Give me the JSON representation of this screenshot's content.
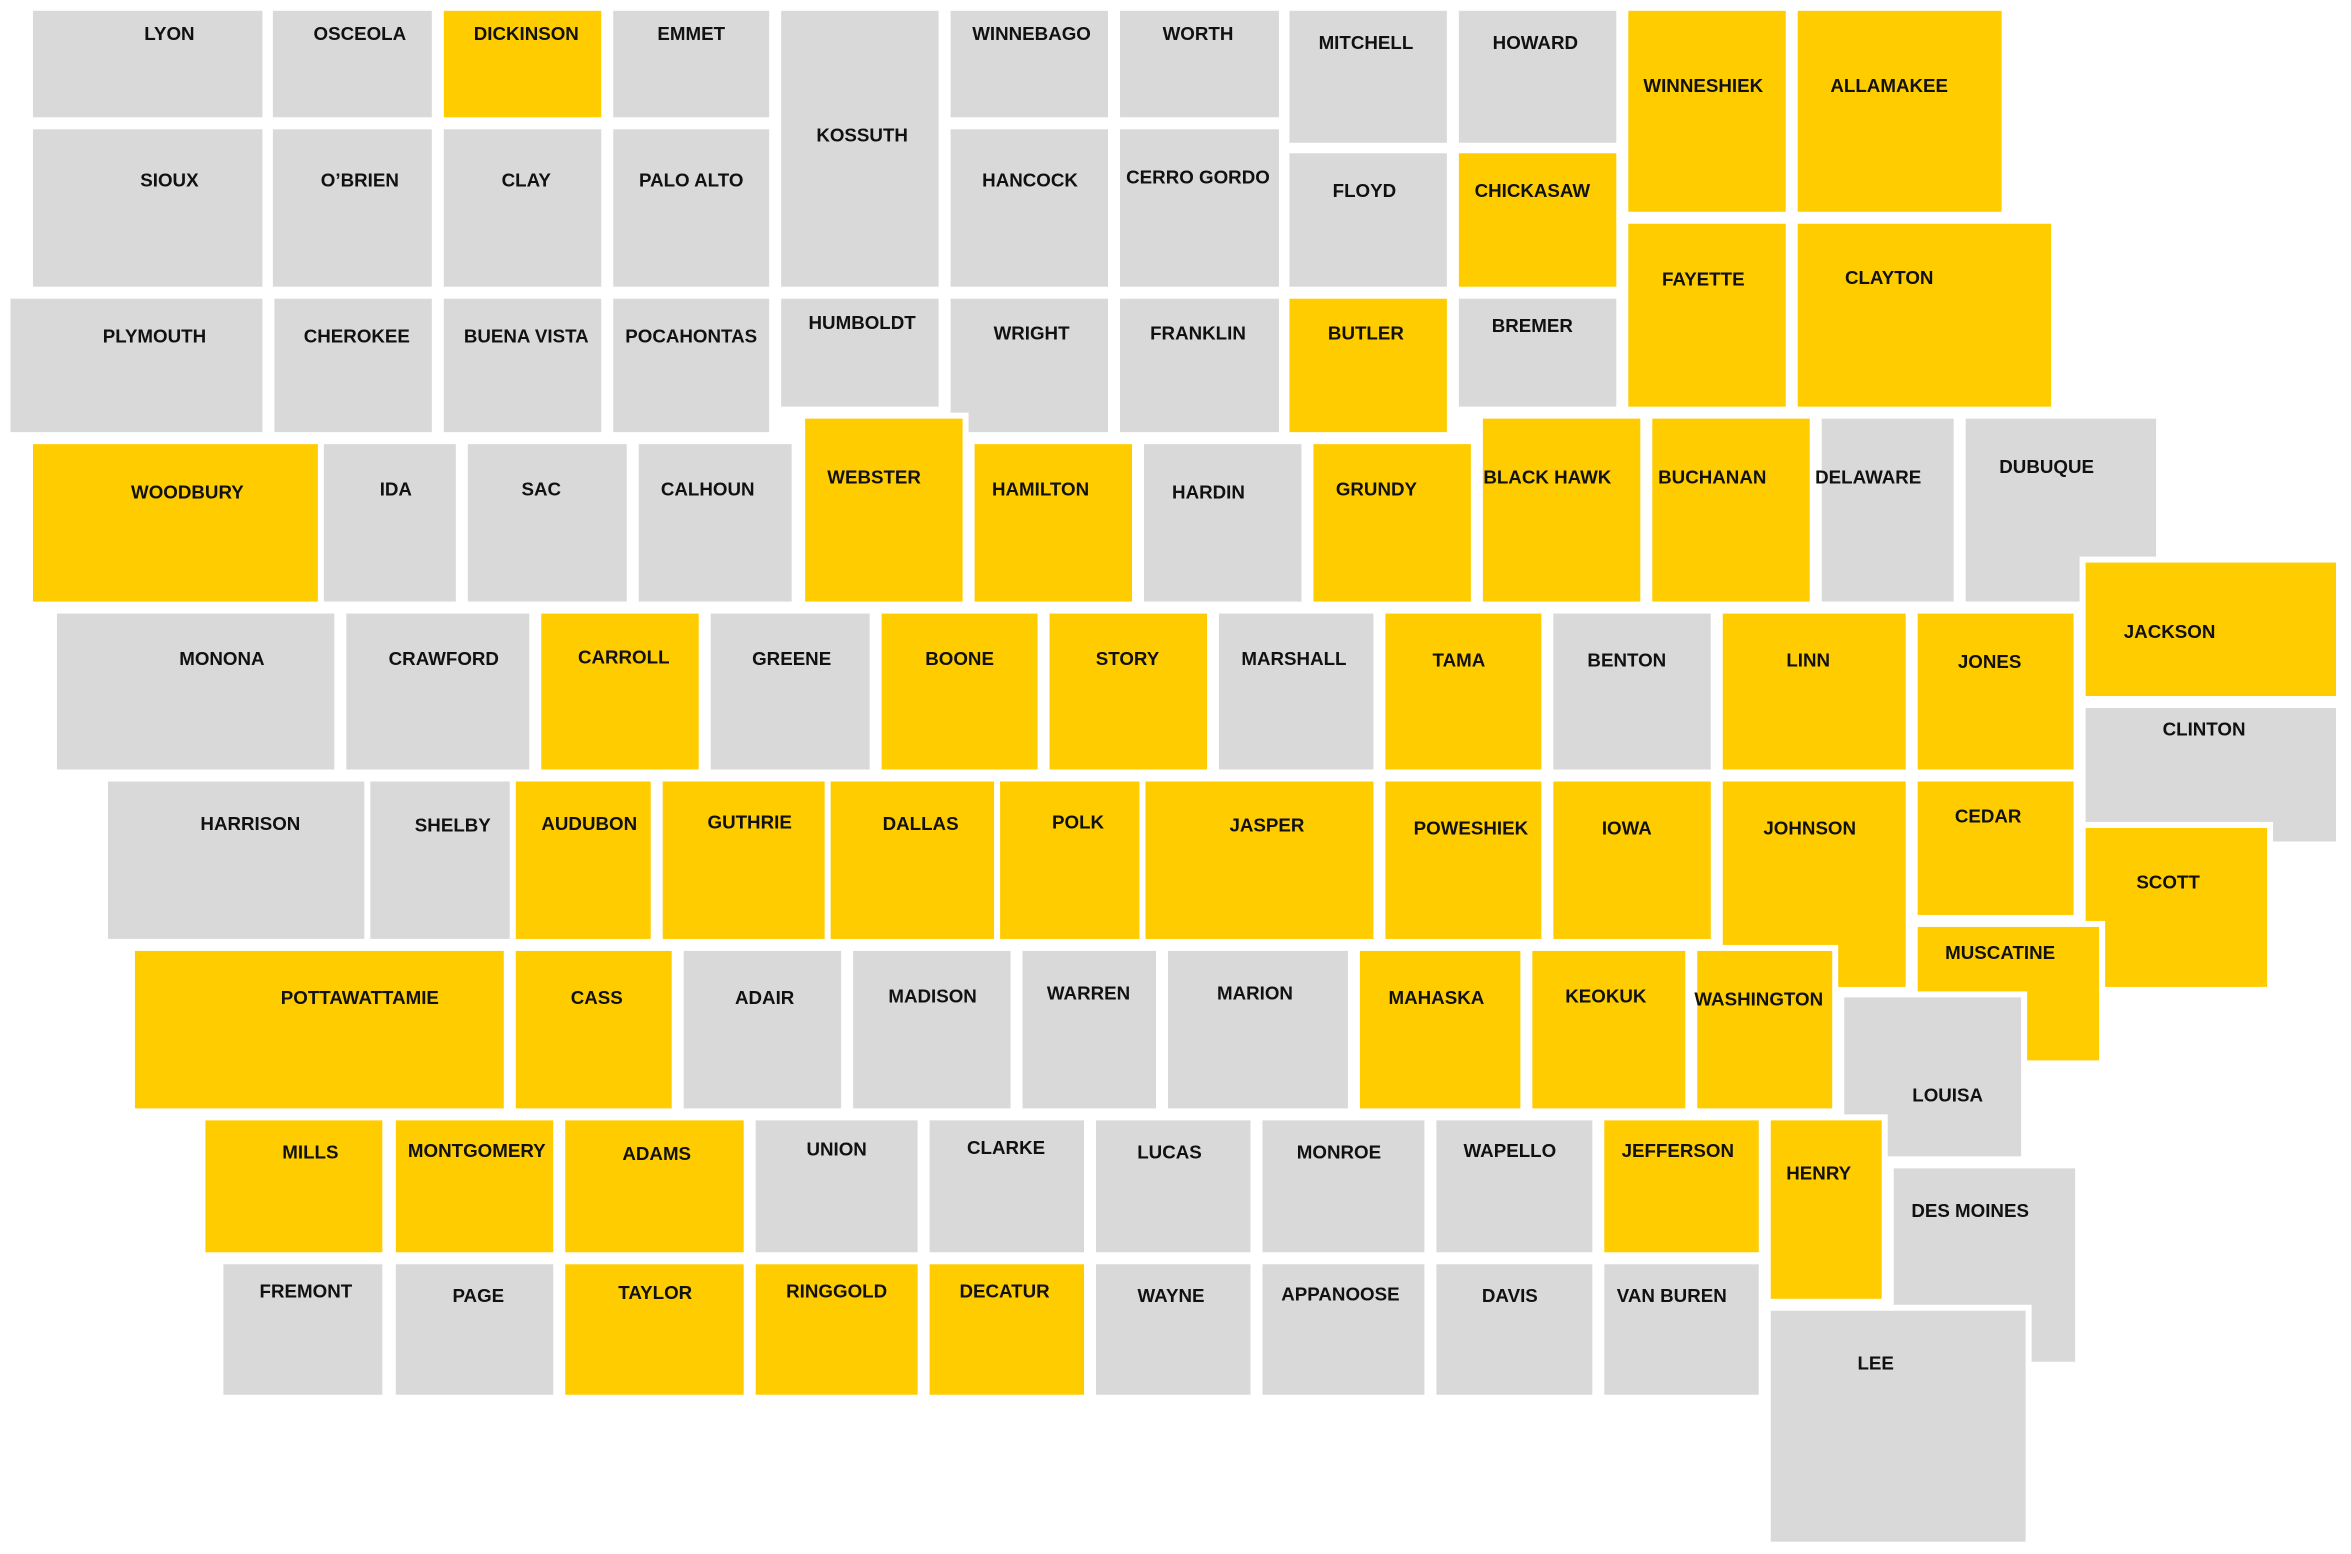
{
  "map": {
    "highlight_color": "#FFCC00",
    "base_color": "#D9D9D9",
    "counties": [
      {
        "name": "LYON",
        "highlighted": false
      },
      {
        "name": "OSCEOLA",
        "highlighted": false
      },
      {
        "name": "DICKINSON",
        "highlighted": true
      },
      {
        "name": "EMMET",
        "highlighted": false
      },
      {
        "name": "KOSSUTH",
        "highlighted": false
      },
      {
        "name": "WINNEBAGO",
        "highlighted": false
      },
      {
        "name": "WORTH",
        "highlighted": false
      },
      {
        "name": "MITCHELL",
        "highlighted": false
      },
      {
        "name": "HOWARD",
        "highlighted": false
      },
      {
        "name": "WINNESHIEK",
        "highlighted": true
      },
      {
        "name": "ALLAMAKEE",
        "highlighted": true
      },
      {
        "name": "SIOUX",
        "highlighted": false
      },
      {
        "name": "O’BRIEN",
        "highlighted": false
      },
      {
        "name": "CLAY",
        "highlighted": false
      },
      {
        "name": "PALO ALTO",
        "highlighted": false
      },
      {
        "name": "HANCOCK",
        "highlighted": false
      },
      {
        "name": "CERRO GORDO",
        "highlighted": false
      },
      {
        "name": "FLOYD",
        "highlighted": false
      },
      {
        "name": "CHICKASAW",
        "highlighted": true
      },
      {
        "name": "FAYETTE",
        "highlighted": true
      },
      {
        "name": "CLAYTON",
        "highlighted": true
      },
      {
        "name": "PLYMOUTH",
        "highlighted": false
      },
      {
        "name": "CHEROKEE",
        "highlighted": false
      },
      {
        "name": "BUENA VISTA",
        "highlighted": false
      },
      {
        "name": "POCAHONTAS",
        "highlighted": false
      },
      {
        "name": "HUMBOLDT",
        "highlighted": false
      },
      {
        "name": "WRIGHT",
        "highlighted": false
      },
      {
        "name": "FRANKLIN",
        "highlighted": false
      },
      {
        "name": "BUTLER",
        "highlighted": true
      },
      {
        "name": "BREMER",
        "highlighted": false
      },
      {
        "name": "WOODBURY",
        "highlighted": true
      },
      {
        "name": "IDA",
        "highlighted": false
      },
      {
        "name": "SAC",
        "highlighted": false
      },
      {
        "name": "CALHOUN",
        "highlighted": false
      },
      {
        "name": "WEBSTER",
        "highlighted": true
      },
      {
        "name": "HAMILTON",
        "highlighted": true
      },
      {
        "name": "HARDIN",
        "highlighted": false
      },
      {
        "name": "GRUNDY",
        "highlighted": true
      },
      {
        "name": "BLACK HAWK",
        "highlighted": true
      },
      {
        "name": "BUCHANAN",
        "highlighted": true
      },
      {
        "name": "DELAWARE",
        "highlighted": false
      },
      {
        "name": "DUBUQUE",
        "highlighted": false
      },
      {
        "name": "MONONA",
        "highlighted": false
      },
      {
        "name": "CRAWFORD",
        "highlighted": false
      },
      {
        "name": "CARROLL",
        "highlighted": true
      },
      {
        "name": "GREENE",
        "highlighted": false
      },
      {
        "name": "BOONE",
        "highlighted": true
      },
      {
        "name": "STORY",
        "highlighted": true
      },
      {
        "name": "MARSHALL",
        "highlighted": false
      },
      {
        "name": "TAMA",
        "highlighted": true
      },
      {
        "name": "BENTON",
        "highlighted": false
      },
      {
        "name": "LINN",
        "highlighted": true
      },
      {
        "name": "JONES",
        "highlighted": true
      },
      {
        "name": "JACKSON",
        "highlighted": true
      },
      {
        "name": "CLINTON",
        "highlighted": false
      },
      {
        "name": "HARRISON",
        "highlighted": false
      },
      {
        "name": "SHELBY",
        "highlighted": false
      },
      {
        "name": "AUDUBON",
        "highlighted": true
      },
      {
        "name": "GUTHRIE",
        "highlighted": true
      },
      {
        "name": "DALLAS",
        "highlighted": true
      },
      {
        "name": "POLK",
        "highlighted": true
      },
      {
        "name": "JASPER",
        "highlighted": true
      },
      {
        "name": "POWESHIEK",
        "highlighted": true
      },
      {
        "name": "IOWA",
        "highlighted": true
      },
      {
        "name": "JOHNSON",
        "highlighted": true
      },
      {
        "name": "CEDAR",
        "highlighted": true
      },
      {
        "name": "SCOTT",
        "highlighted": true
      },
      {
        "name": "POTTAWATTAMIE",
        "highlighted": true
      },
      {
        "name": "CASS",
        "highlighted": true
      },
      {
        "name": "ADAIR",
        "highlighted": false
      },
      {
        "name": "MADISON",
        "highlighted": false
      },
      {
        "name": "WARREN",
        "highlighted": false
      },
      {
        "name": "MARION",
        "highlighted": false
      },
      {
        "name": "MAHASKA",
        "highlighted": true
      },
      {
        "name": "KEOKUK",
        "highlighted": true
      },
      {
        "name": "WASHINGTON",
        "highlighted": true
      },
      {
        "name": "MUSCATINE",
        "highlighted": true
      },
      {
        "name": "LOUISA",
        "highlighted": false
      },
      {
        "name": "MILLS",
        "highlighted": true
      },
      {
        "name": "MONTGOMERY",
        "highlighted": true
      },
      {
        "name": "ADAMS",
        "highlighted": true
      },
      {
        "name": "UNION",
        "highlighted": false
      },
      {
        "name": "CLARKE",
        "highlighted": false
      },
      {
        "name": "LUCAS",
        "highlighted": false
      },
      {
        "name": "MONROE",
        "highlighted": false
      },
      {
        "name": "WAPELLO",
        "highlighted": false
      },
      {
        "name": "JEFFERSON",
        "highlighted": true
      },
      {
        "name": "HENRY",
        "highlighted": true
      },
      {
        "name": "DES MOINES",
        "highlighted": false
      },
      {
        "name": "FREMONT",
        "highlighted": false
      },
      {
        "name": "PAGE",
        "highlighted": false
      },
      {
        "name": "TAYLOR",
        "highlighted": true
      },
      {
        "name": "RINGGOLD",
        "highlighted": true
      },
      {
        "name": "DECATUR",
        "highlighted": true
      },
      {
        "name": "WAYNE",
        "highlighted": false
      },
      {
        "name": "APPANOOSE",
        "highlighted": false
      },
      {
        "name": "DAVIS",
        "highlighted": false
      },
      {
        "name": "VAN BUREN",
        "highlighted": false
      },
      {
        "name": "LEE",
        "highlighted": false
      }
    ]
  }
}
